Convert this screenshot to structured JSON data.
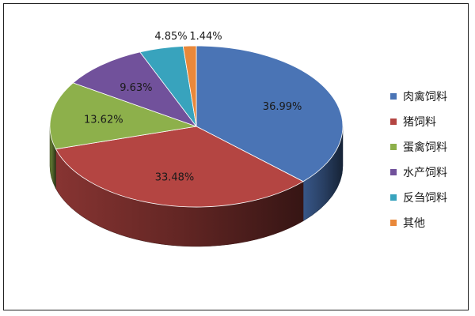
{
  "chart_data": {
    "type": "pie",
    "style": "3d",
    "title": "",
    "categories": [
      "肉禽饲料",
      "猪饲料",
      "蛋禽饲料",
      "水产饲料",
      "反刍饲料",
      "其他"
    ],
    "values": [
      36.99,
      33.48,
      13.62,
      9.63,
      4.85,
      1.44
    ],
    "labels": [
      "36.99%",
      "33.48%",
      "13.62%",
      "9.63%",
      "4.85%",
      "1.44%"
    ],
    "colors": [
      "#4a74b5",
      "#b44542",
      "#8db04b",
      "#71519b",
      "#38a3bd",
      "#e9883a"
    ],
    "legend_position": "right"
  }
}
